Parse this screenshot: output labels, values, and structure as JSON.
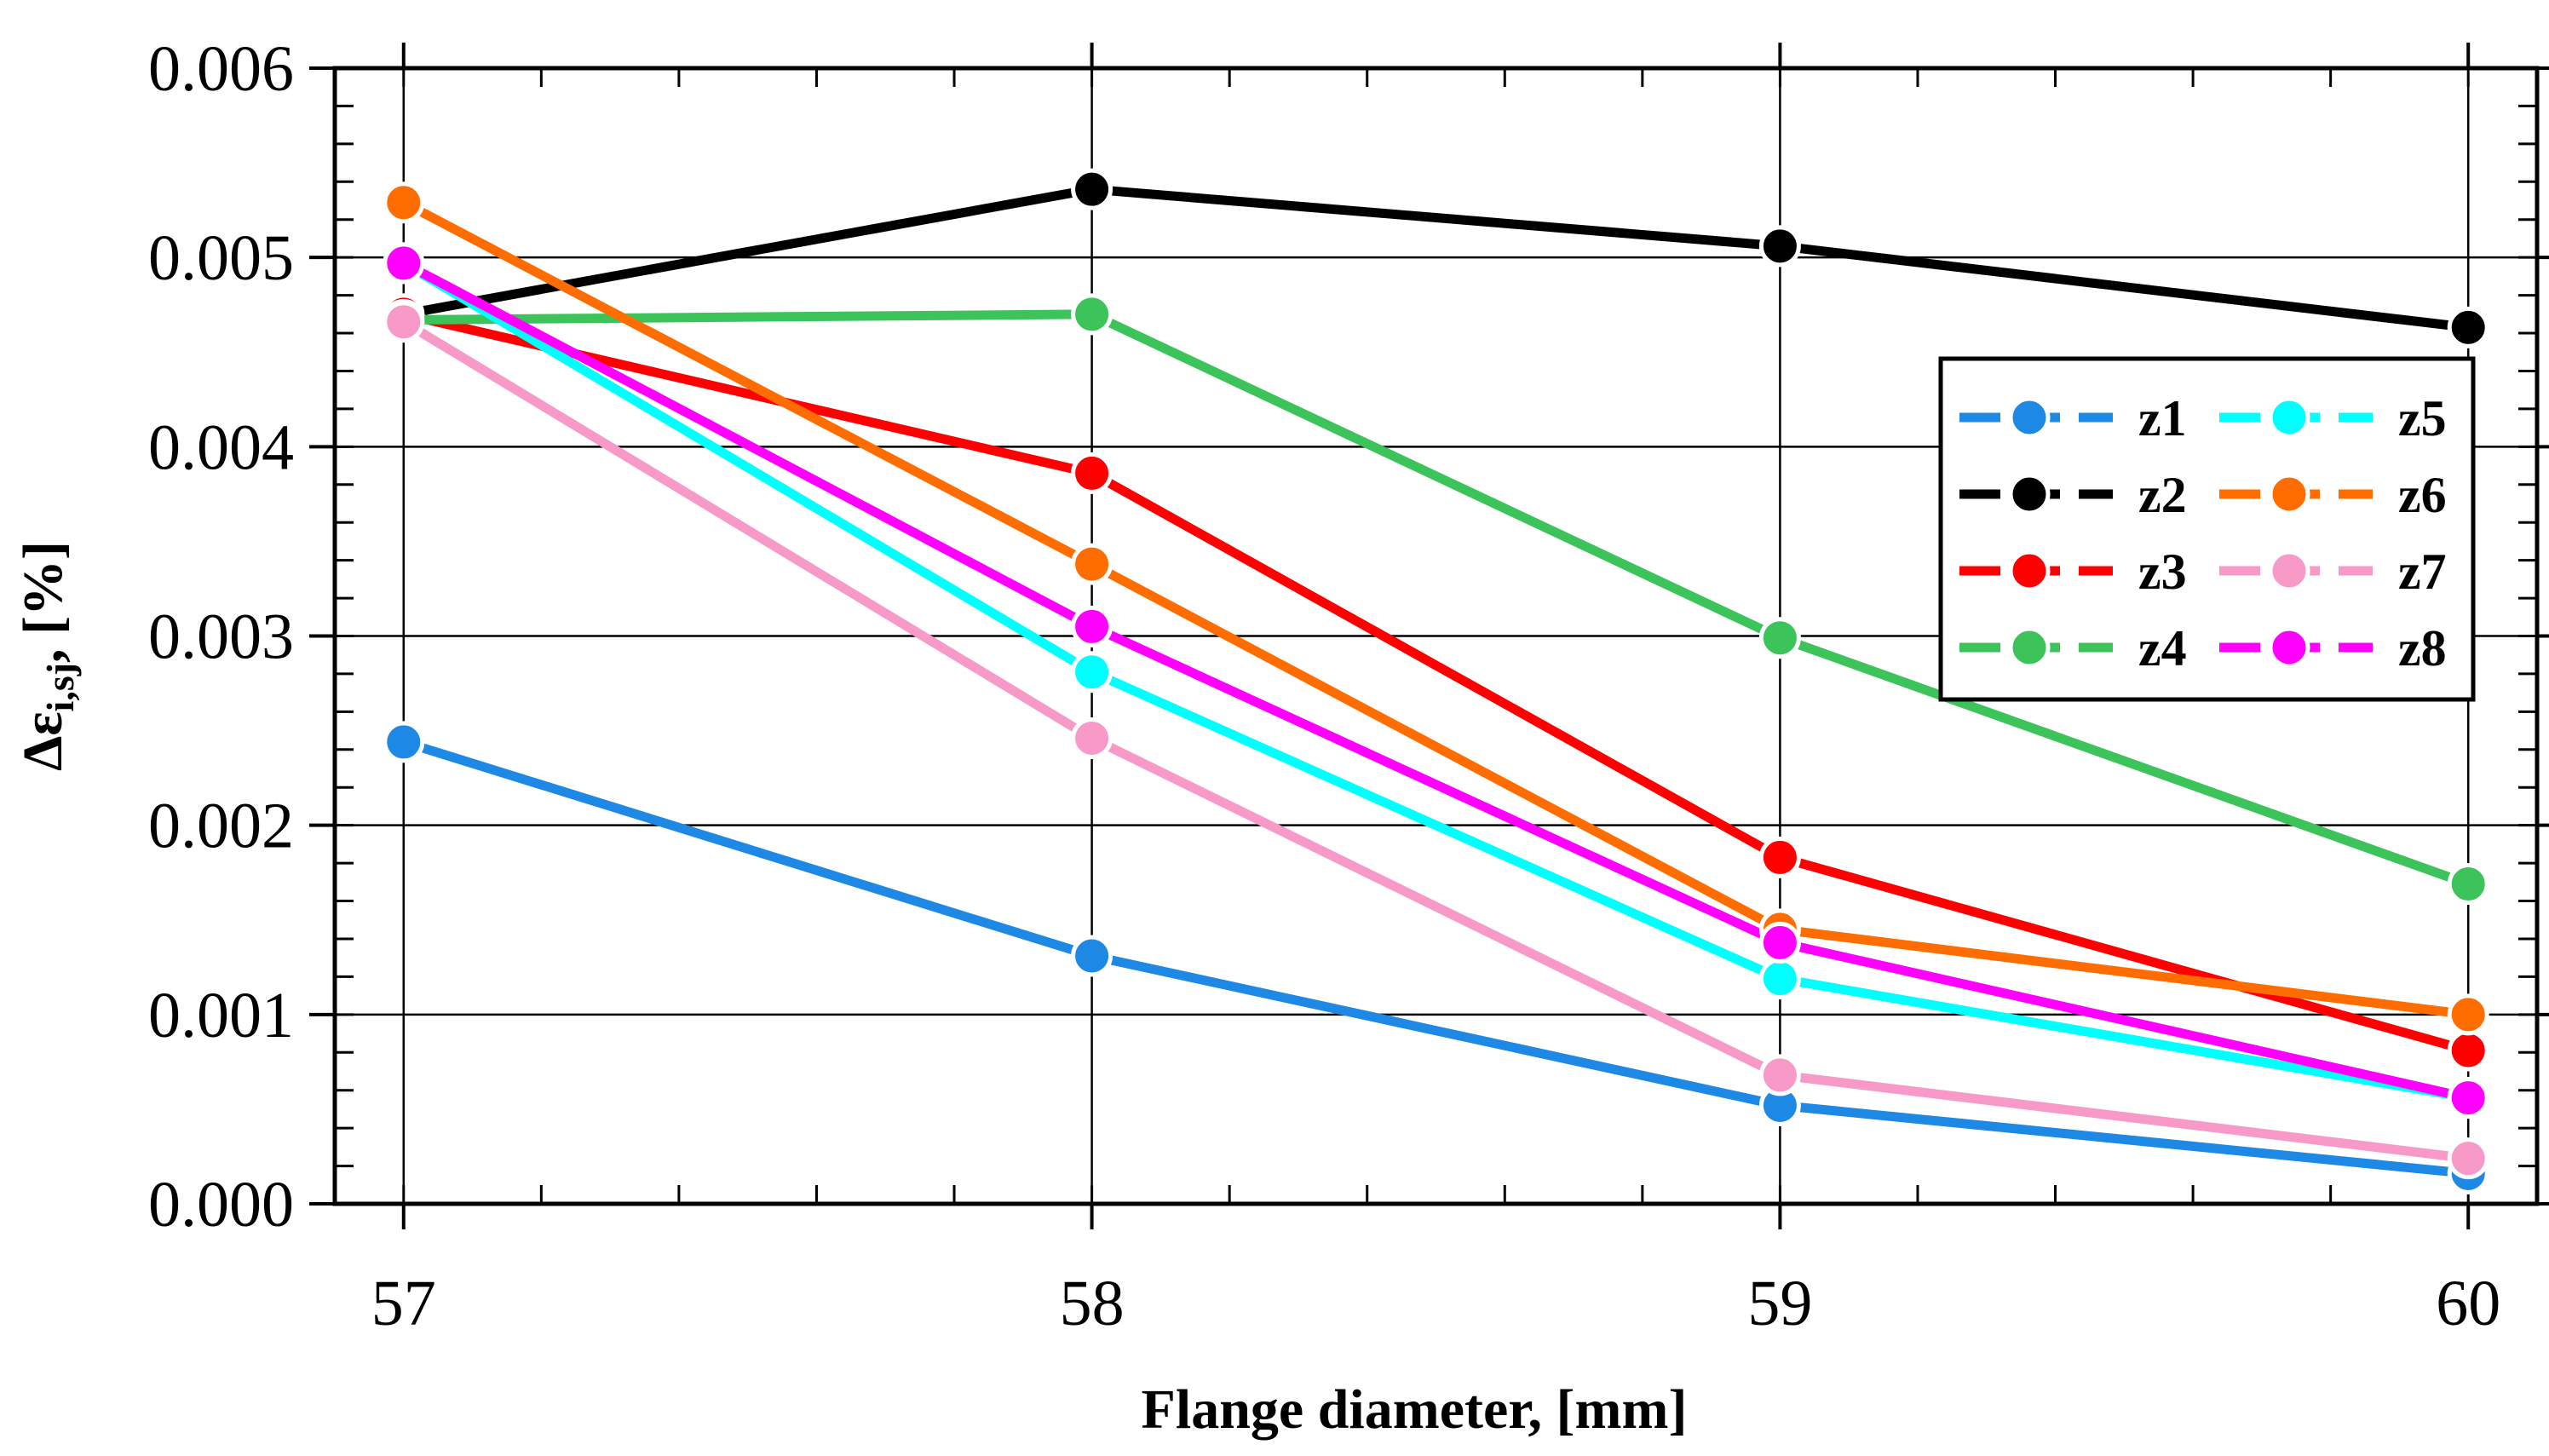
{
  "chart_data": {
    "type": "line",
    "title": "",
    "xlabel": "Flange diameter, [mm]",
    "ylabel": {
      "main": "Δε",
      "sub": "i,sj",
      "suffix": ", [%]"
    },
    "x": [
      57,
      58,
      59,
      60
    ],
    "xlim": [
      56.9,
      60.1
    ],
    "ylim": [
      0.0,
      0.006
    ],
    "xticks": [
      "57",
      "58",
      "59",
      "60"
    ],
    "yticks": [
      "0.000",
      "0.001",
      "0.002",
      "0.003",
      "0.004",
      "0.005",
      "0.006"
    ],
    "grid": true,
    "legend_position": "right, upper-middle",
    "series": [
      {
        "name": "z1",
        "color": "#1e88e5",
        "values": [
          0.00244,
          0.00131,
          0.00052,
          0.00016
        ]
      },
      {
        "name": "z2",
        "color": "#000000",
        "values": [
          0.0047,
          0.00536,
          0.00506,
          0.00463
        ]
      },
      {
        "name": "z3",
        "color": "#ff0000",
        "values": [
          0.0047,
          0.00386,
          0.00183,
          0.00081
        ]
      },
      {
        "name": "z4",
        "color": "#3cc35a",
        "values": [
          0.00467,
          0.0047,
          0.00299,
          0.00169
        ]
      },
      {
        "name": "z5",
        "color": "#00ffff",
        "values": [
          0.00497,
          0.00281,
          0.00119,
          0.00056
        ]
      },
      {
        "name": "z6",
        "color": "#ff6d00",
        "values": [
          0.00529,
          0.00338,
          0.00145,
          0.001
        ]
      },
      {
        "name": "z7",
        "color": "#f79ac8",
        "values": [
          0.00466,
          0.00246,
          0.00068,
          0.00024
        ]
      },
      {
        "name": "z8",
        "color": "#ff00ff",
        "values": [
          0.00497,
          0.00305,
          0.00138,
          0.00056
        ]
      }
    ]
  }
}
